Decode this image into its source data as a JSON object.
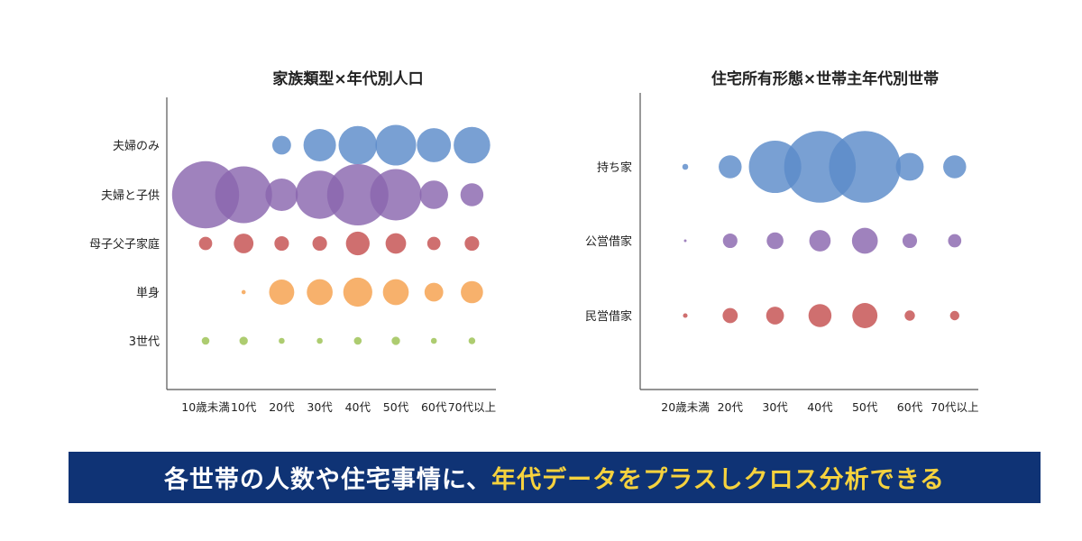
{
  "colors": {
    "blue": "#5b8bc9",
    "purple": "#8a66ae",
    "red": "#c44f4f",
    "orange": "#f5a04c",
    "green": "#9bc151"
  },
  "chart_data": [
    {
      "type": "bubble",
      "title": "家族類型×年代別人口",
      "categories": [
        "夫婦のみ",
        "夫婦と子供",
        "母子父子家庭",
        "単身",
        "3世代"
      ],
      "x": [
        "10歳未満",
        "10代",
        "20代",
        "30代",
        "40代",
        "50代",
        "60代",
        "70代以上"
      ],
      "series": [
        {
          "name": "夫婦のみ",
          "color": "blue",
          "values": [
            0,
            0,
            1.0,
            3.0,
            4.2,
            4.7,
            3.3,
            3.8
          ]
        },
        {
          "name": "夫婦と子供",
          "color": "purple",
          "values": [
            12.8,
            9.2,
            3.0,
            6.6,
            10.7,
            7.5,
            2.3,
            1.5
          ]
        },
        {
          "name": "母子父子家庭",
          "color": "red",
          "values": [
            0.5,
            1.1,
            0.6,
            0.6,
            1.6,
            1.2,
            0.5,
            0.6
          ]
        },
        {
          "name": "単身",
          "color": "orange",
          "values": [
            0,
            0.05,
            1.8,
            1.9,
            2.4,
            1.9,
            1.0,
            1.4
          ]
        },
        {
          "name": "3世代",
          "color": "green",
          "values": [
            0.17,
            0.2,
            0.1,
            0.1,
            0.17,
            0.2,
            0.1,
            0.13
          ]
        }
      ]
    },
    {
      "type": "bubble",
      "title": "住宅所有形態×世帯主年代別世帯",
      "categories": [
        "持ち家",
        "公営借家",
        "民営借家"
      ],
      "x": [
        "20歳未満",
        "20代",
        "30代",
        "40代",
        "50代",
        "60代",
        "70代以上"
      ],
      "series": [
        {
          "name": "持ち家",
          "color": "blue",
          "values": [
            0.1,
            1.5,
            7.8,
            14.6,
            14.6,
            2.2,
            1.5
          ]
        },
        {
          "name": "公営借家",
          "color": "purple",
          "values": [
            0.02,
            0.6,
            0.8,
            1.3,
            1.9,
            0.6,
            0.5
          ]
        },
        {
          "name": "民営借家",
          "color": "red",
          "values": [
            0.06,
            0.65,
            0.9,
            1.5,
            1.8,
            0.3,
            0.25
          ]
        }
      ]
    }
  ],
  "banner": {
    "part1": "各世帯の人数や住宅事情に、",
    "part2": "年代データをプラスしクロス分析できる"
  }
}
